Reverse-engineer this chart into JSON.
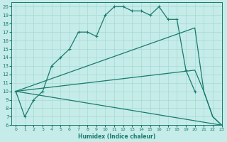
{
  "xlabel": "Humidex (Indice chaleur)",
  "bg_color": "#c5ece8",
  "grid_color": "#a8d8d3",
  "line_color": "#1a7a6e",
  "xlim": [
    -0.5,
    23
  ],
  "ylim": [
    6,
    20.5
  ],
  "xticks": [
    0,
    1,
    2,
    3,
    4,
    5,
    6,
    7,
    8,
    9,
    10,
    11,
    12,
    13,
    14,
    15,
    16,
    17,
    18,
    19,
    20,
    21,
    22,
    23
  ],
  "yticks": [
    6,
    7,
    8,
    9,
    10,
    11,
    12,
    13,
    14,
    15,
    16,
    17,
    18,
    19,
    20
  ],
  "lines": [
    {
      "x": [
        0,
        1,
        2,
        3,
        4,
        5,
        6,
        7,
        8,
        9,
        10,
        11,
        12,
        13,
        14,
        15,
        16,
        17,
        18,
        19,
        20
      ],
      "y": [
        10,
        7,
        9,
        10,
        13,
        14,
        15,
        17,
        17,
        16.5,
        19,
        20,
        20,
        19.5,
        19.5,
        19,
        20,
        18.5,
        18.5,
        12.5,
        10
      ],
      "has_markers": true
    },
    {
      "x": [
        0,
        20,
        21,
        22,
        23
      ],
      "y": [
        10,
        17.5,
        10,
        7,
        6
      ],
      "has_markers": false
    },
    {
      "x": [
        0,
        20,
        21,
        22,
        23
      ],
      "y": [
        10,
        12.5,
        10,
        7,
        6
      ],
      "has_markers": false
    },
    {
      "x": [
        0,
        23
      ],
      "y": [
        10,
        6
      ],
      "has_markers": false
    }
  ]
}
